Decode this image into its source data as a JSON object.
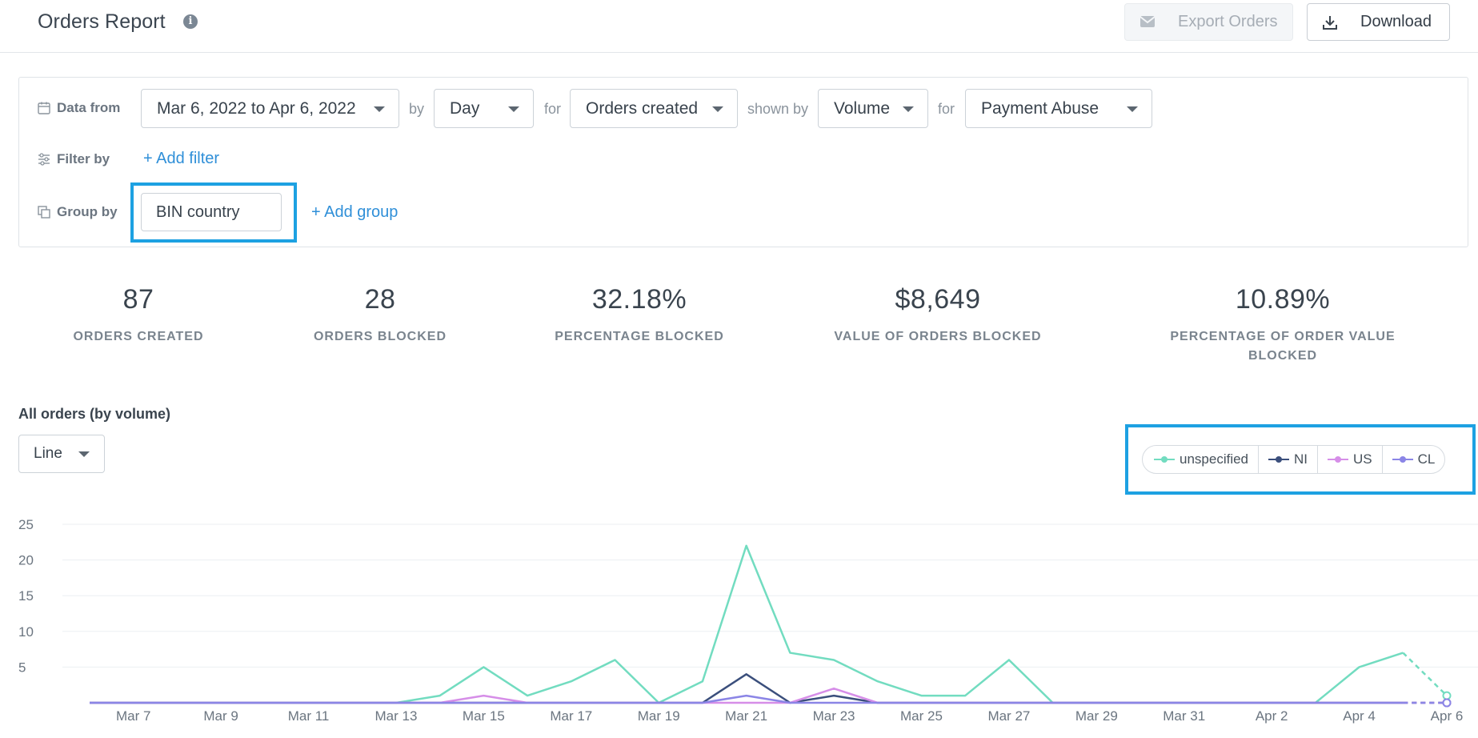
{
  "header": {
    "title": "Orders Report",
    "export_label": "Export Orders",
    "download_label": "Download"
  },
  "filters": {
    "data_from_label": "Data from",
    "date_range": "Mar 6, 2022 to Apr 6, 2022",
    "by_label": "by",
    "interval": "Day",
    "for_label": "for",
    "metric": "Orders created",
    "shown_by_label": "shown by",
    "shown_by": "Volume",
    "for2_label": "for",
    "abuse_type": "Payment Abuse",
    "filter_by_label": "Filter by",
    "add_filter": "+ Add filter",
    "group_by_label": "Group by",
    "group_value": "BIN country",
    "add_group": "+ Add group"
  },
  "stats": [
    {
      "value": "87",
      "label": "ORDERS CREATED"
    },
    {
      "value": "28",
      "label": "ORDERS BLOCKED"
    },
    {
      "value": "32.18%",
      "label": "PERCENTAGE BLOCKED"
    },
    {
      "value": "$8,649",
      "label": "VALUE OF ORDERS BLOCKED"
    },
    {
      "value": "10.89%",
      "label": "PERCENTAGE OF ORDER VALUE BLOCKED"
    }
  ],
  "chart_section": {
    "title": "All orders (by volume)",
    "chart_type_label": "Line"
  },
  "chart_data": {
    "type": "line",
    "title": "All orders (by volume)",
    "x": [
      "Mar 6",
      "Mar 7",
      "Mar 8",
      "Mar 9",
      "Mar 10",
      "Mar 11",
      "Mar 12",
      "Mar 13",
      "Mar 14",
      "Mar 15",
      "Mar 16",
      "Mar 17",
      "Mar 18",
      "Mar 19",
      "Mar 20",
      "Mar 21",
      "Mar 22",
      "Mar 23",
      "Mar 24",
      "Mar 25",
      "Mar 26",
      "Mar 27",
      "Mar 28",
      "Mar 29",
      "Mar 30",
      "Mar 31",
      "Apr 1",
      "Apr 2",
      "Apr 3",
      "Apr 4",
      "Apr 5",
      "Apr 6"
    ],
    "x_tick_labels": [
      "Mar 7",
      "Mar 9",
      "Mar 11",
      "Mar 13",
      "Mar 15",
      "Mar 17",
      "Mar 19",
      "Mar 21",
      "Mar 23",
      "Mar 25",
      "Mar 27",
      "Mar 29",
      "Mar 31",
      "Apr 2",
      "Apr 4",
      "Apr 6"
    ],
    "y_ticks": [
      "5",
      "10",
      "15",
      "20",
      "25"
    ],
    "ylim": [
      0,
      25
    ],
    "grid": true,
    "legend_position": "top-right",
    "series": [
      {
        "name": "unspecified",
        "color": "#72dcc0",
        "values": [
          0,
          0,
          0,
          0,
          0,
          0,
          0,
          0,
          1,
          5,
          1,
          3,
          6,
          0,
          3,
          22,
          7,
          6,
          3,
          1,
          1,
          6,
          0,
          0,
          0,
          0,
          0,
          0,
          0,
          5,
          7,
          1
        ]
      },
      {
        "name": "NI",
        "color": "#3b4f7c",
        "values": [
          0,
          0,
          0,
          0,
          0,
          0,
          0,
          0,
          0,
          0,
          0,
          0,
          0,
          0,
          0,
          4,
          0,
          1,
          0,
          0,
          0,
          0,
          0,
          0,
          0,
          0,
          0,
          0,
          0,
          0,
          0,
          0
        ]
      },
      {
        "name": "US",
        "color": "#d68ee8",
        "values": [
          0,
          0,
          0,
          0,
          0,
          0,
          0,
          0,
          0,
          1,
          0,
          0,
          0,
          0,
          0,
          0,
          0,
          2,
          0,
          0,
          0,
          0,
          0,
          0,
          0,
          0,
          0,
          0,
          0,
          0,
          0,
          0
        ]
      },
      {
        "name": "CL",
        "color": "#8b85e6",
        "values": [
          0,
          0,
          0,
          0,
          0,
          0,
          0,
          0,
          0,
          0,
          0,
          0,
          0,
          0,
          0,
          1,
          0,
          0,
          0,
          0,
          0,
          0,
          0,
          0,
          0,
          0,
          0,
          0,
          0,
          0,
          0,
          0
        ]
      }
    ]
  }
}
